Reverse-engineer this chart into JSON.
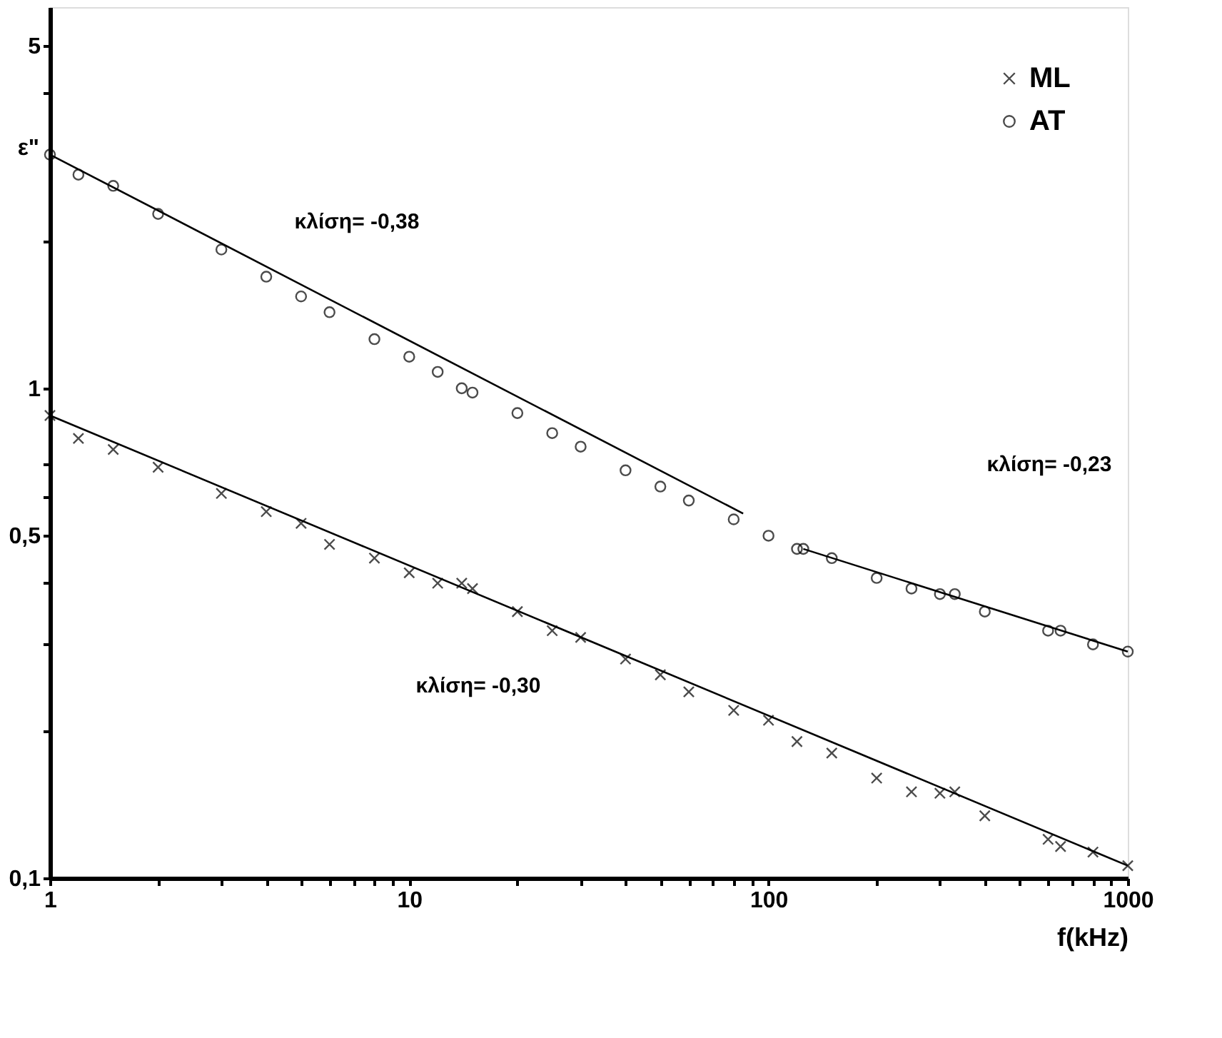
{
  "chart_data": {
    "type": "scatter",
    "xlabel": "f(kHz)",
    "ylabel": "ε\"",
    "log": "xy",
    "xlim": [
      1,
      1000
    ],
    "ylim": [
      0.1,
      6
    ],
    "xticks": [
      1,
      {
        "value": 2,
        "label": null
      },
      {
        "value": 3,
        "label": null
      },
      {
        "value": 4,
        "label": null
      },
      {
        "value": 5,
        "label": null
      },
      {
        "value": 6,
        "label": null
      },
      {
        "value": 7,
        "label": null
      },
      {
        "value": 8,
        "label": null
      },
      {
        "value": 9,
        "label": null
      },
      10,
      {
        "value": 20,
        "label": null
      },
      {
        "value": 30,
        "label": null
      },
      {
        "value": 40,
        "label": null
      },
      {
        "value": 50,
        "label": null
      },
      {
        "value": 60,
        "label": null
      },
      {
        "value": 70,
        "label": null
      },
      {
        "value": 80,
        "label": null
      },
      {
        "value": 90,
        "label": null
      },
      100,
      {
        "value": 200,
        "label": null
      },
      {
        "value": 300,
        "label": null
      },
      {
        "value": 400,
        "label": null
      },
      {
        "value": 500,
        "label": null
      },
      {
        "value": 600,
        "label": null
      },
      {
        "value": 700,
        "label": null
      },
      {
        "value": 800,
        "label": null
      },
      {
        "value": 900,
        "label": null
      },
      1000
    ],
    "yticks": [
      {
        "value": 0.1,
        "label": "0,1"
      },
      {
        "value": 0.2,
        "label": null
      },
      {
        "value": 0.3,
        "label": null
      },
      {
        "value": 0.4,
        "label": null
      },
      {
        "value": 0.5,
        "label": "0,5"
      },
      {
        "value": 0.6,
        "label": null
      },
      {
        "value": 0.7,
        "label": null
      },
      1,
      {
        "value": 2,
        "label": null
      },
      {
        "value": 4,
        "label": null
      },
      5
    ],
    "grid": false,
    "legend": "top right",
    "series": [
      {
        "name": "ML",
        "marker": "cross",
        "color": "#000000",
        "x": [
          1,
          1.2,
          1.5,
          2,
          3,
          4,
          5,
          6,
          8,
          10,
          12,
          14,
          15,
          20,
          25,
          30,
          40,
          50,
          60,
          80,
          100,
          120,
          150,
          200,
          250,
          300,
          330,
          400,
          600,
          650,
          800,
          1000
        ],
        "values": [
          0.88,
          0.79,
          0.75,
          0.69,
          0.61,
          0.56,
          0.53,
          0.48,
          0.45,
          0.42,
          0.4,
          0.4,
          0.39,
          0.35,
          0.32,
          0.31,
          0.28,
          0.26,
          0.24,
          0.22,
          0.21,
          0.19,
          0.18,
          0.16,
          0.15,
          0.149,
          0.15,
          0.134,
          0.12,
          0.116,
          0.113,
          0.106
        ]
      },
      {
        "name": "AT",
        "marker": "circle",
        "color": "#000000",
        "x": [
          1,
          1.2,
          1.5,
          2,
          3,
          4,
          5,
          6,
          8,
          10,
          12,
          14,
          15,
          20,
          25,
          30,
          40,
          50,
          60,
          80,
          100,
          120,
          125,
          150,
          200,
          250,
          300,
          330,
          400,
          600,
          650,
          800,
          1000
        ],
        "values": [
          3.0,
          2.73,
          2.59,
          2.27,
          1.92,
          1.69,
          1.54,
          1.43,
          1.26,
          1.16,
          1.08,
          1.0,
          0.98,
          0.89,
          0.81,
          0.76,
          0.68,
          0.63,
          0.59,
          0.54,
          0.5,
          0.47,
          0.47,
          0.45,
          0.41,
          0.39,
          0.38,
          0.38,
          0.35,
          0.32,
          0.32,
          0.3,
          0.29
        ]
      },
      {
        "type": "line",
        "color": "#000000",
        "x": [
          1,
          1000
        ],
        "values": [
          0.88,
          0.106
        ]
      },
      {
        "type": "line",
        "color": "#000000",
        "x": [
          1,
          85
        ],
        "values": [
          3.0,
          0.555
        ]
      },
      {
        "type": "line",
        "color": "#000000",
        "x": [
          125,
          1000
        ],
        "values": [
          0.47,
          0.29
        ]
      }
    ],
    "annotations": [
      "κλίση= -0,38",
      "κλίση= -0,23",
      "κλίση= -0,30"
    ]
  }
}
